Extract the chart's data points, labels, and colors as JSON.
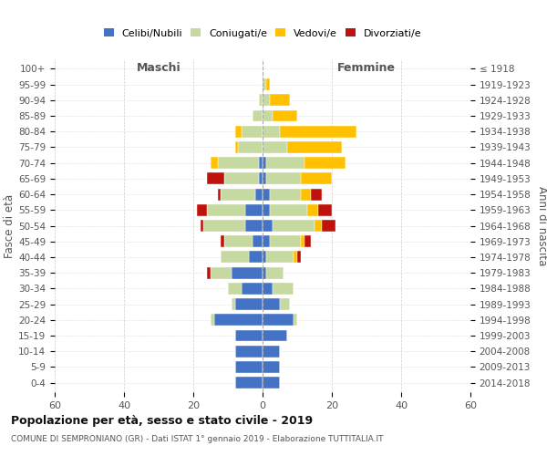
{
  "age_groups": [
    "0-4",
    "5-9",
    "10-14",
    "15-19",
    "20-24",
    "25-29",
    "30-34",
    "35-39",
    "40-44",
    "45-49",
    "50-54",
    "55-59",
    "60-64",
    "65-69",
    "70-74",
    "75-79",
    "80-84",
    "85-89",
    "90-94",
    "95-99",
    "100+"
  ],
  "birth_years": [
    "2014-2018",
    "2009-2013",
    "2004-2008",
    "1999-2003",
    "1994-1998",
    "1989-1993",
    "1984-1988",
    "1979-1983",
    "1974-1978",
    "1969-1973",
    "1964-1968",
    "1959-1963",
    "1954-1958",
    "1949-1953",
    "1944-1948",
    "1939-1943",
    "1934-1938",
    "1929-1933",
    "1924-1928",
    "1919-1923",
    "≤ 1918"
  ],
  "males": {
    "celibi": [
      8,
      8,
      8,
      8,
      14,
      8,
      6,
      9,
      4,
      3,
      5,
      5,
      2,
      1,
      1,
      0,
      0,
      0,
      0,
      0,
      0
    ],
    "coniugati": [
      0,
      0,
      0,
      0,
      1,
      1,
      4,
      6,
      8,
      8,
      12,
      11,
      10,
      10,
      12,
      7,
      6,
      3,
      1,
      0,
      0
    ],
    "vedovi": [
      0,
      0,
      0,
      0,
      0,
      0,
      0,
      0,
      0,
      0,
      0,
      0,
      0,
      0,
      2,
      1,
      2,
      0,
      0,
      0,
      0
    ],
    "divorziati": [
      0,
      0,
      0,
      0,
      0,
      0,
      0,
      1,
      0,
      1,
      1,
      3,
      1,
      5,
      0,
      0,
      0,
      0,
      0,
      0,
      0
    ]
  },
  "females": {
    "nubili": [
      5,
      5,
      5,
      7,
      9,
      5,
      3,
      1,
      1,
      2,
      3,
      2,
      2,
      1,
      1,
      0,
      0,
      0,
      0,
      0,
      0
    ],
    "coniugate": [
      0,
      0,
      0,
      0,
      1,
      3,
      6,
      5,
      8,
      9,
      12,
      11,
      9,
      10,
      11,
      7,
      5,
      3,
      2,
      1,
      0
    ],
    "vedove": [
      0,
      0,
      0,
      0,
      0,
      0,
      0,
      0,
      1,
      1,
      2,
      3,
      3,
      9,
      12,
      16,
      22,
      7,
      6,
      1,
      0
    ],
    "divorziate": [
      0,
      0,
      0,
      0,
      0,
      0,
      0,
      0,
      1,
      2,
      4,
      4,
      3,
      0,
      0,
      0,
      0,
      0,
      0,
      0,
      0
    ]
  },
  "colors": {
    "celibi_nubili": "#4472c4",
    "coniugati": "#c5d9a0",
    "vedovi": "#ffc000",
    "divorziati": "#c0120c"
  },
  "xlim": 60,
  "title": "Popolazione per età, sesso e stato civile - 2019",
  "subtitle": "COMUNE DI SEMPRONIANO (GR) - Dati ISTAT 1° gennaio 2019 - Elaborazione TUTTITALIA.IT",
  "ylabel_left": "Fasce di età",
  "ylabel_right": "Anni di nascita",
  "xlabel_left": "Maschi",
  "xlabel_right": "Femmine"
}
